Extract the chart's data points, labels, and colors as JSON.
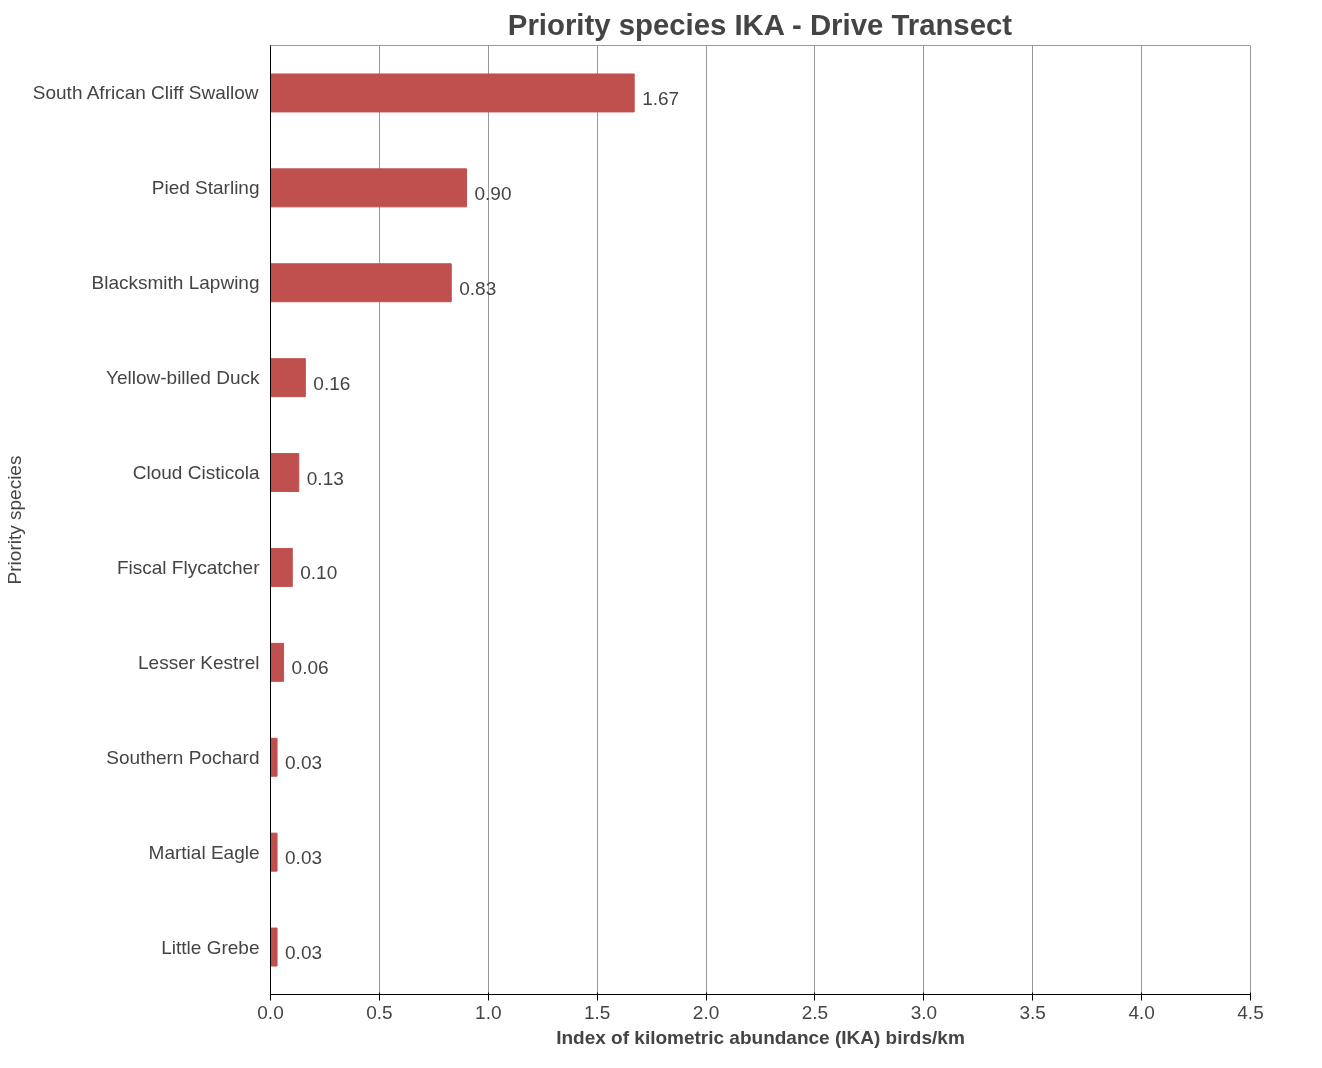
{
  "chart_data": {
    "type": "bar",
    "orientation": "horizontal",
    "title": "Priority species IKA - Drive Transect",
    "xlabel": "Index of kilometric abundance (IKA) birds/km",
    "ylabel": "Priority species",
    "categories": [
      "South African Cliff Swallow",
      "Pied Starling",
      "Blacksmith Lapwing",
      "Yellow-billed Duck",
      "Cloud Cisticola",
      "Fiscal Flycatcher",
      "Lesser Kestrel",
      "Southern Pochard",
      "Martial Eagle",
      "Little Grebe"
    ],
    "values": [
      1.67,
      0.9,
      0.83,
      0.16,
      0.13,
      0.1,
      0.06,
      0.03,
      0.03,
      0.03
    ],
    "value_labels": [
      "1.67",
      "0.90",
      "0.83",
      "0.16",
      "0.13",
      "0.10",
      "0.06",
      "0.03",
      "0.03",
      "0.03"
    ],
    "color": "#c0504d",
    "xlim": [
      0,
      4.5
    ],
    "xticks": [
      {
        "value": 0,
        "label": "0.0"
      },
      0.5,
      {
        "value": 1,
        "label": "1.0"
      },
      1.5,
      {
        "value": 2,
        "label": "2.0"
      },
      2.5,
      {
        "value": 3,
        "label": "3.0"
      },
      3.5,
      {
        "value": 4,
        "label": "4.0"
      },
      4.5
    ],
    "grid": "x"
  }
}
